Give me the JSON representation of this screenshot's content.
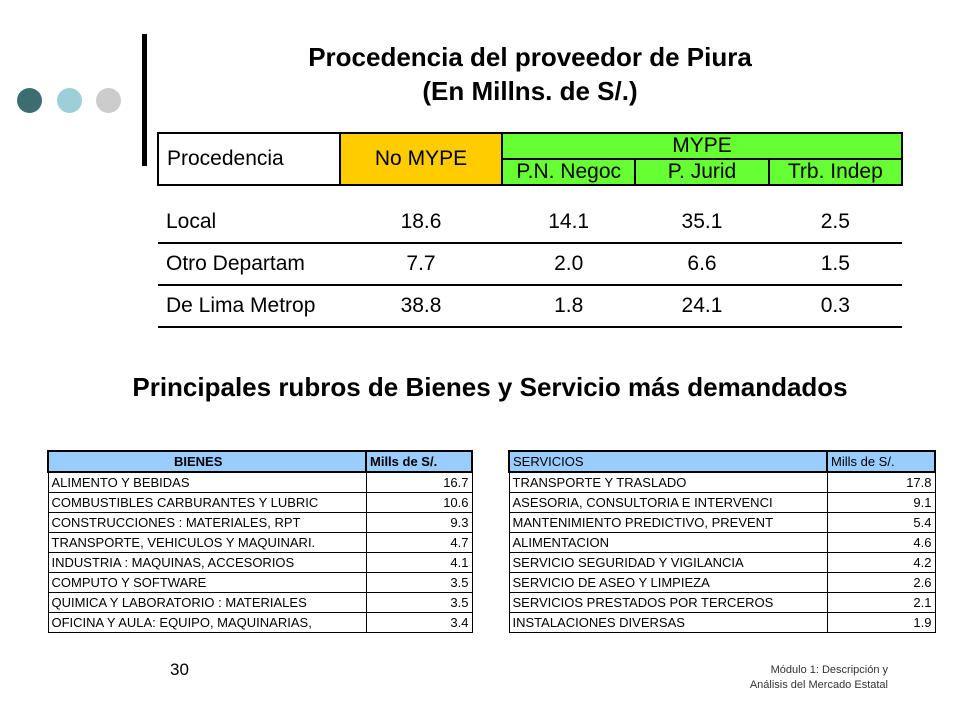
{
  "colors": {
    "dot1": "#3c6e71",
    "dot2": "#9ccfd8",
    "dot3": "#cccccc",
    "no_mype": "#ffcc00",
    "mype": "#66ff33",
    "list_header": "#99ccff"
  },
  "title1_line1": "Procedencia del proveedor de Piura",
  "title1_line2": "(En Millns. de S/.)",
  "main_table": {
    "h_procedencia": "Procedencia",
    "h_no_mype": "No MYPE",
    "h_mype": "MYPE",
    "h_pn": "P.N. Negoc",
    "h_pj": "P. Jurid",
    "h_trb": "Trb. Indep",
    "rows": [
      {
        "label": "Local",
        "no_mype": "18.6",
        "pn": "14.1",
        "pj": "35.1",
        "trb": "2.5"
      },
      {
        "label": "Otro Departam",
        "no_mype": "7.7",
        "pn": "2.0",
        "pj": "6.6",
        "trb": "1.5"
      },
      {
        "label": "De Lima Metrop",
        "no_mype": "38.8",
        "pn": "1.8",
        "pj": "24.1",
        "trb": "0.3"
      }
    ]
  },
  "title2": "Principales rubros de Bienes y Servicio más demandados",
  "bienes": {
    "h_name": "BIENES",
    "h_val": "Mills de S/.",
    "rows": [
      {
        "name": "ALIMENTO Y BEBIDAS",
        "val": "16.7"
      },
      {
        "name": "COMBUSTIBLES CARBURANTES Y LUBRIC",
        "val": "10.6"
      },
      {
        "name": "CONSTRUCCIONES  :  MATERIALES, RPT",
        "val": "9.3"
      },
      {
        "name": "TRANSPORTE, VEHICULOS Y MAQUINARI.",
        "val": "4.7"
      },
      {
        "name": "INDUSTRIA   :   MAQUINAS, ACCESORIOS",
        "val": "4.1"
      },
      {
        "name": "COMPUTO Y SOFTWARE",
        "val": "3.5"
      },
      {
        "name": "QUIMICA Y LABORATORIO :  MATERIALES",
        "val": "3.5"
      },
      {
        "name": "OFICINA Y AULA: EQUIPO, MAQUINARIAS,",
        "val": "3.4"
      }
    ]
  },
  "servicios": {
    "h_name": "SERVICIOS",
    "h_val": "Mills de S/.",
    "rows": [
      {
        "name": "TRANSPORTE Y TRASLADO",
        "val": "17.8"
      },
      {
        "name": "ASESORIA, CONSULTORIA E INTERVENCI",
        "val": "9.1"
      },
      {
        "name": "MANTENIMIENTO PREDICTIVO, PREVENT",
        "val": "5.4"
      },
      {
        "name": "ALIMENTACION",
        "val": "4.6"
      },
      {
        "name": "SERVICIO SEGURIDAD Y VIGILANCIA",
        "val": "4.2"
      },
      {
        "name": "SERVICIO DE ASEO Y LIMPIEZA",
        "val": "2.6"
      },
      {
        "name": "SERVICIOS PRESTADOS POR TERCEROS",
        "val": "2.1"
      },
      {
        "name": "INSTALACIONES DIVERSAS",
        "val": "1.9"
      }
    ]
  },
  "page_number": "30",
  "footer_line1": "Módulo 1: Descripción y",
  "footer_line2": "Análisis del Mercado Estatal"
}
